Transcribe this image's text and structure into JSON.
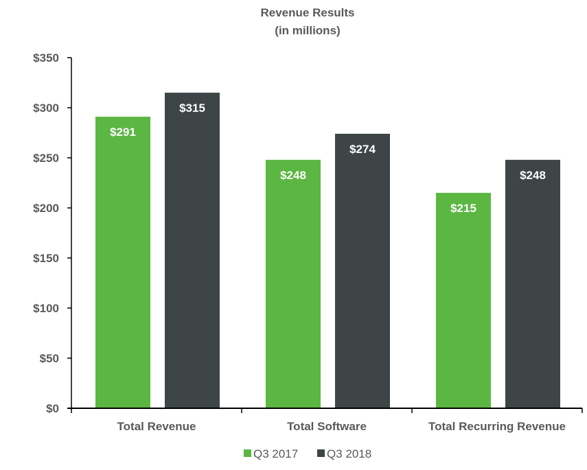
{
  "chart_data": {
    "type": "bar",
    "title": "Revenue Results",
    "subtitle": "(in millions)",
    "xlabel": "",
    "ylabel": "",
    "categories": [
      "Total Revenue",
      "Total Software",
      "Total Recurring Revenue"
    ],
    "series": [
      {
        "name": "Q3 2017",
        "values": [
          291,
          248,
          215
        ],
        "labels": [
          "$291",
          "$248",
          "$215"
        ],
        "color": "#5BB642"
      },
      {
        "name": "Q3 2018",
        "values": [
          315,
          274,
          248
        ],
        "labels": [
          "$315",
          "$274",
          "$248"
        ],
        "color": "#3D4546"
      }
    ],
    "ylim": [
      0,
      350
    ],
    "yticks": [
      0,
      50,
      100,
      150,
      200,
      250,
      300,
      350
    ],
    "ytick_labels": [
      "$0",
      "$50",
      "$100",
      "$150",
      "$200",
      "$250",
      "$300",
      "$350"
    ],
    "grid": false,
    "legend_position": "bottom"
  }
}
